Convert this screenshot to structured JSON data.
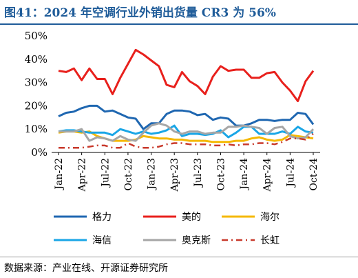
{
  "title": "图41：2024 年空调行业外销出货量 CR3 为 56%",
  "source": "数据来源：产业在线、开源证券研究所",
  "chart_data": {
    "type": "line",
    "ylim": [
      0,
      50
    ],
    "yticks": [
      "0%",
      "10%",
      "20%",
      "30%",
      "40%",
      "50%"
    ],
    "x": [
      "Jan-22",
      "Feb-22",
      "Mar-22",
      "Apr-22",
      "May-22",
      "Jun-22",
      "Jul-22",
      "Aug-22",
      "Sep-22",
      "Oct-22",
      "Nov-22",
      "Dec-22",
      "Jan-23",
      "Feb-23",
      "Mar-23",
      "Apr-23",
      "May-23",
      "Jun-23",
      "Jul-23",
      "Aug-23",
      "Sep-23",
      "Oct-23",
      "Nov-23",
      "Dec-23",
      "Jan-24",
      "Feb-24",
      "Mar-24",
      "Apr-24",
      "May-24",
      "Jun-24",
      "Jul-24",
      "Aug-24",
      "Sep-24",
      "Oct-24"
    ],
    "xtick_labels": [
      "Jan-22",
      "Apr-22",
      "Jul-22",
      "Oct-22",
      "Jan-23",
      "Apr-23",
      "Jul-23",
      "Oct-23",
      "Jan-24",
      "Apr-24",
      "Jul-24",
      "Oct-24"
    ],
    "series": [
      {
        "name": "格力",
        "color": "#1f67b1",
        "dash": "solid",
        "values": [
          15.5,
          17,
          17.5,
          19,
          20,
          20,
          17.5,
          18,
          16.5,
          15,
          14.5,
          10,
          12.5,
          12.5,
          16.5,
          18,
          18,
          17.5,
          16,
          16.5,
          14,
          15,
          14.5,
          11.5,
          11.5,
          12.5,
          14,
          14,
          13.5,
          14,
          14,
          17,
          16.5,
          12
        ]
      },
      {
        "name": "美的",
        "color": "#e8201c",
        "dash": "solid",
        "values": [
          35,
          34.5,
          36,
          31,
          36,
          31.5,
          31.5,
          25,
          32,
          38,
          44,
          42,
          39.5,
          37,
          29,
          28,
          34.5,
          30.5,
          28.5,
          25,
          32.5,
          37,
          35,
          35.5,
          35.5,
          32,
          32,
          34,
          34.5,
          30,
          26.5,
          22,
          30.5,
          35
        ]
      },
      {
        "name": "海尔",
        "color": "#f5b800",
        "dash": "solid",
        "values": [
          8.5,
          9,
          9,
          8.5,
          9,
          7,
          6,
          5,
          5,
          5,
          5.5,
          7,
          6.5,
          6,
          6,
          5.5,
          5.5,
          5,
          5,
          5,
          4.5,
          4.5,
          4.5,
          5,
          5,
          6,
          6.5,
          5.5,
          5,
          5.5,
          7.5,
          7,
          6.5,
          6
        ]
      },
      {
        "name": "海信",
        "color": "#1aa6e6",
        "dash": "solid",
        "values": [
          9,
          9.5,
          9.5,
          9,
          8.5,
          8.5,
          8.5,
          7.5,
          10,
          9,
          8,
          9,
          8,
          8.5,
          9.5,
          11.5,
          7,
          8,
          8,
          7.5,
          8,
          9.5,
          6.5,
          8.5,
          11,
          11,
          8,
          8,
          8,
          9,
          8,
          11,
          9,
          8.5
        ]
      },
      {
        "name": "奥克斯",
        "color": "#a6a6a6",
        "dash": "solid",
        "values": [
          9,
          9,
          9,
          10,
          5,
          6.5,
          6,
          5,
          7,
          5.5,
          5,
          8.5,
          11.5,
          12.5,
          11.5,
          9,
          8,
          9,
          9,
          8,
          8.5,
          8.5,
          11,
          11,
          11.5,
          11,
          10.5,
          8,
          10.5,
          11,
          7,
          6,
          6.5,
          10
        ]
      },
      {
        "name": "长虹",
        "color": "#c8392b",
        "dash": "dashdot",
        "values": [
          2,
          2,
          2,
          2,
          2.5,
          3,
          3,
          2,
          2,
          4,
          2.5,
          2,
          2,
          2.5,
          3.5,
          4,
          4,
          3.5,
          3.5,
          3.5,
          3,
          3,
          3.5,
          3,
          3.5,
          3.5,
          4,
          4,
          3.5,
          4.5,
          6,
          6,
          5.5,
          8
        ]
      }
    ]
  }
}
